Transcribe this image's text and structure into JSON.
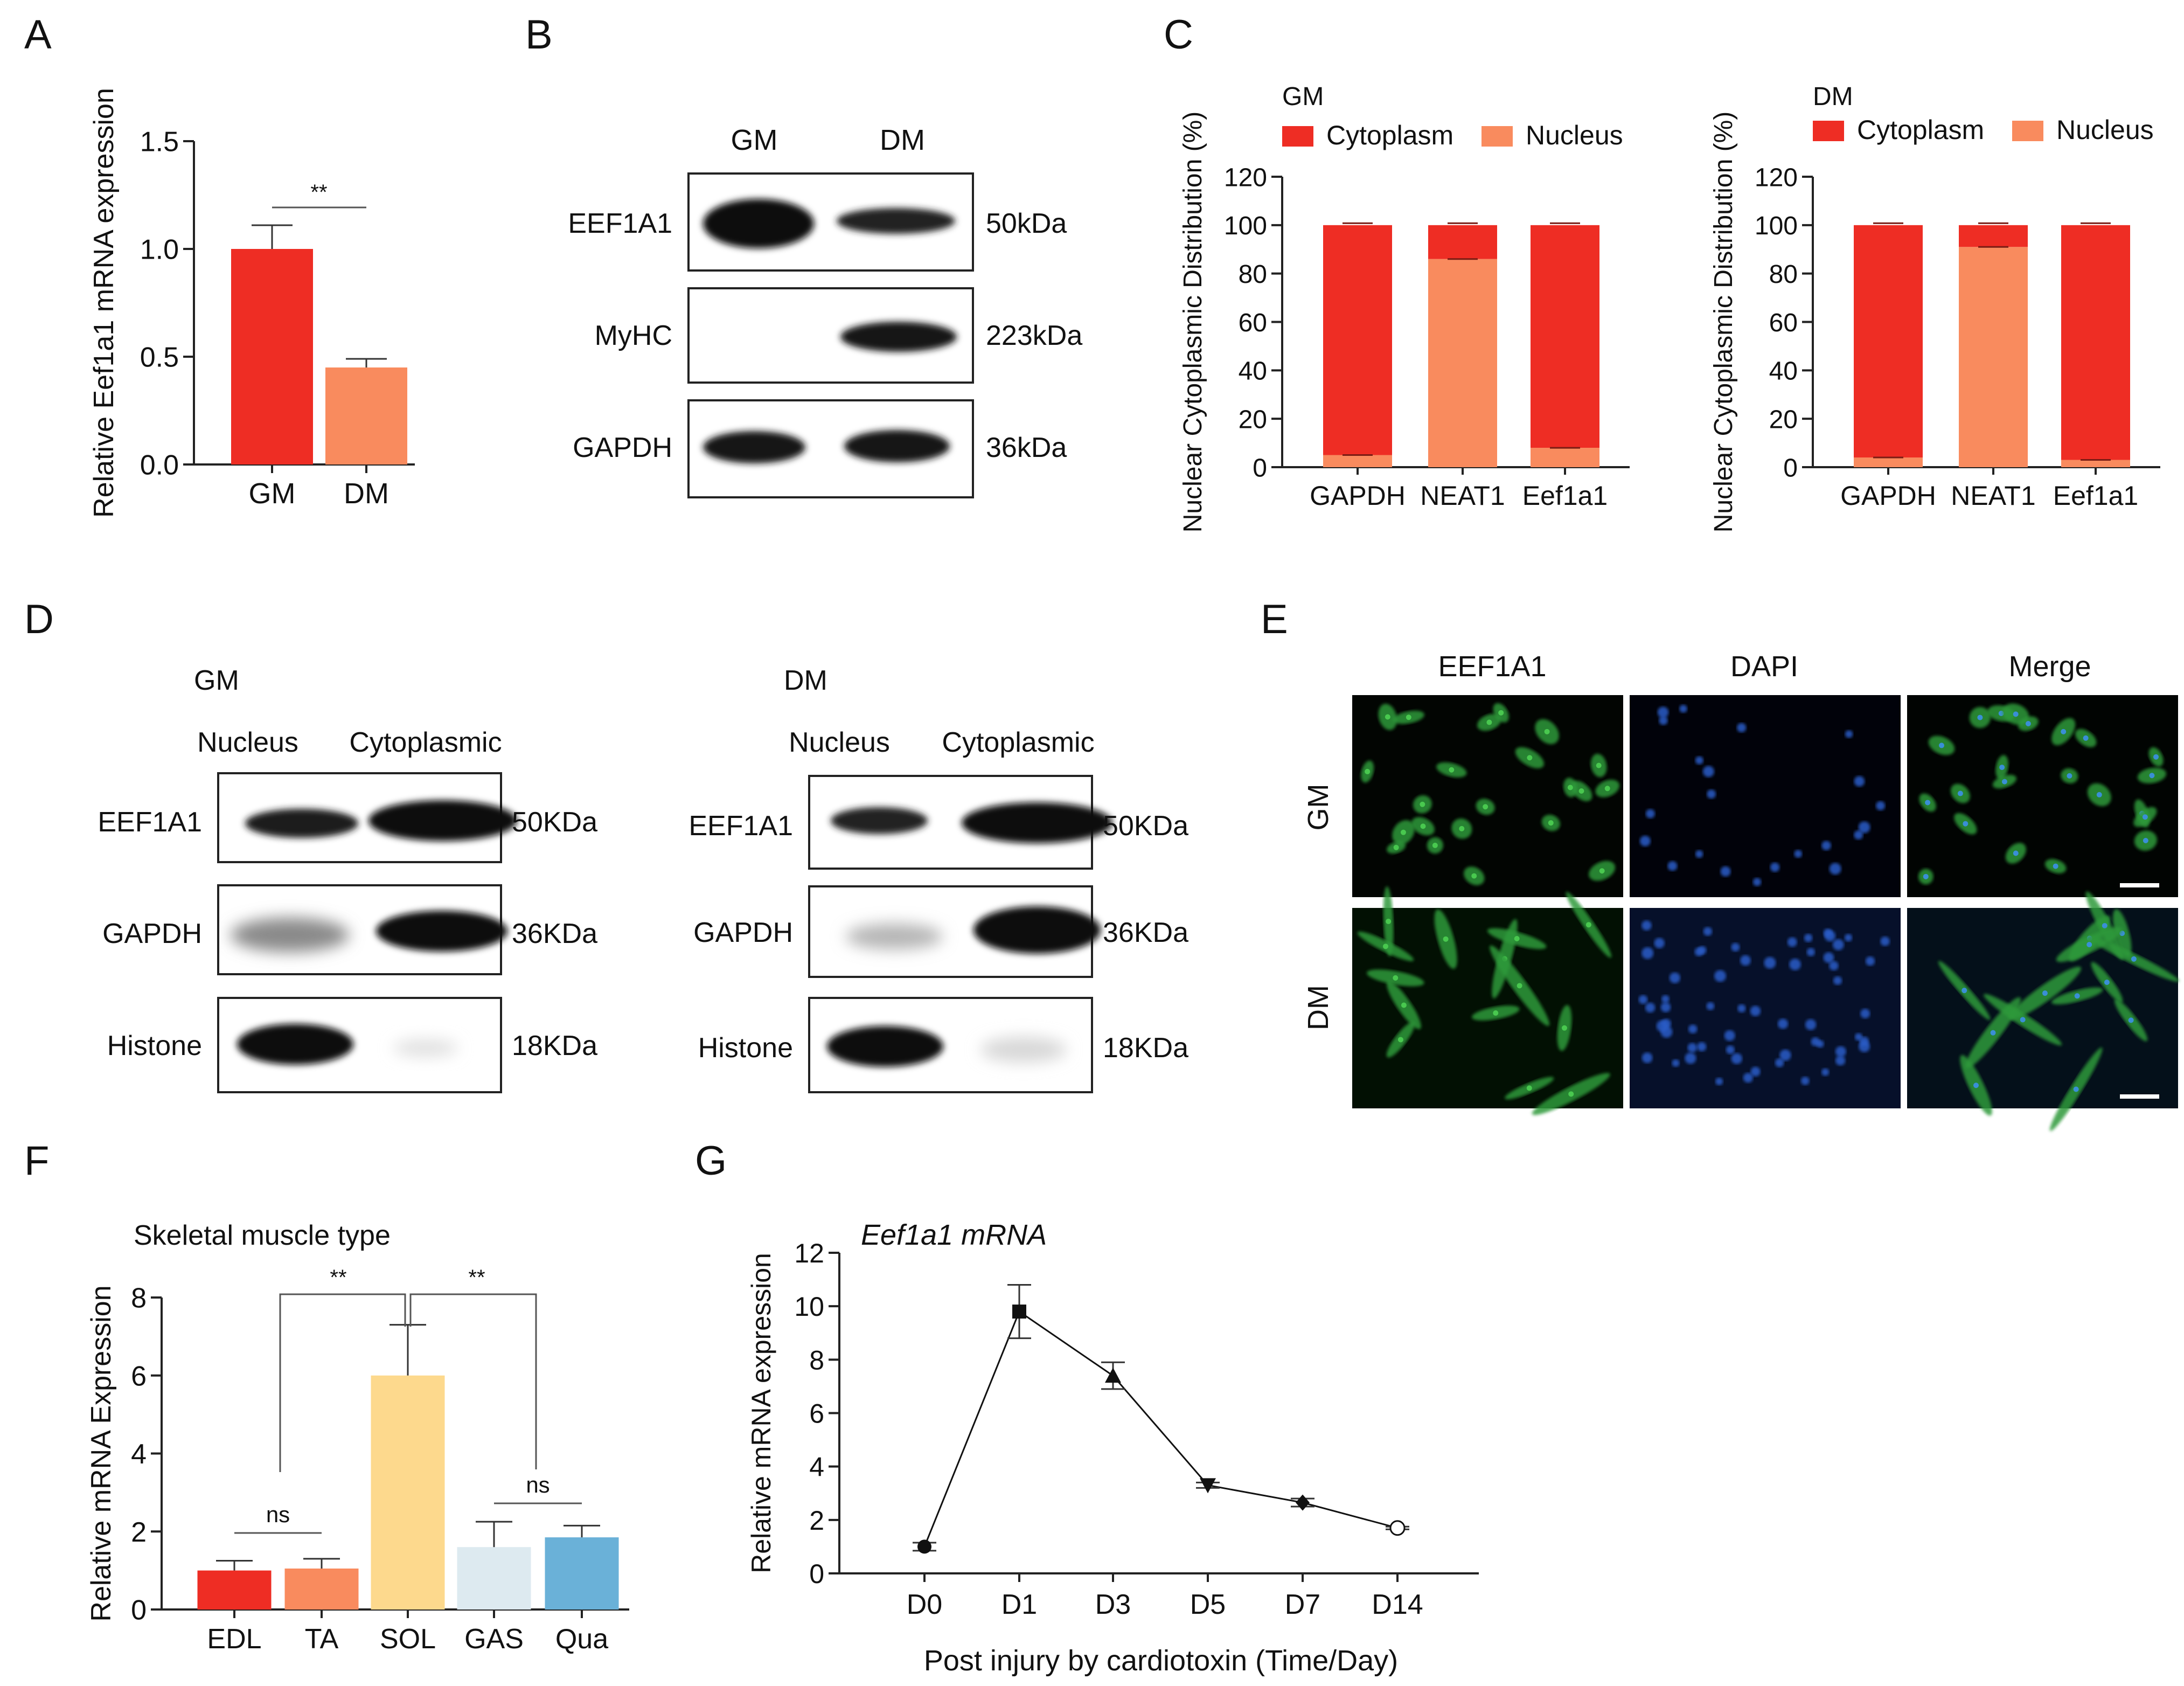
{
  "panels": {
    "A": {
      "letter": "A",
      "chart_data": {
        "type": "bar",
        "categories": [
          "GM",
          "DM"
        ],
        "values": [
          1.0,
          0.45
        ],
        "errors": [
          0.11,
          0.04
        ],
        "ylabel": "Relative Eef1a1 mRNA expression",
        "yticks": [
          "0.0",
          "0.5",
          "1.0",
          "1.5"
        ],
        "ylim": [
          0,
          1.5
        ],
        "colors": [
          "#ee2d24",
          "#f98b5e"
        ],
        "significance": [
          {
            "between": [
              "GM",
              "DM"
            ],
            "label": "**"
          }
        ]
      }
    },
    "B": {
      "letter": "B",
      "lanes": [
        "GM",
        "DM"
      ],
      "blots": [
        {
          "label": "EEF1A1",
          "size": "50kDa"
        },
        {
          "label": "MyHC",
          "size": "223kDa"
        },
        {
          "label": "GAPDH",
          "size": "36kDa"
        }
      ]
    },
    "C": {
      "letter": "C",
      "chart_data": [
        {
          "type": "bar",
          "stacked": true,
          "title": "GM",
          "categories": [
            "GAPDH",
            "NEAT1",
            "Eef1a1"
          ],
          "series": [
            {
              "name": "Nucleus",
              "color": "#f98b5e",
              "values": [
                5,
                86,
                8
              ]
            },
            {
              "name": "Cytoplasm",
              "color": "#ee2d24",
              "values": [
                95,
                14,
                92
              ]
            }
          ],
          "ylabel": "Nuclear Cytoplasmic Distribution (%)",
          "yticks": [
            "0",
            "20",
            "40",
            "60",
            "80",
            "100",
            "120"
          ],
          "ylim": [
            0,
            120
          ],
          "legend": [
            "Cytoplasm",
            "Nucleus"
          ]
        },
        {
          "type": "bar",
          "stacked": true,
          "title": "DM",
          "categories": [
            "GAPDH",
            "NEAT1",
            "Eef1a1"
          ],
          "series": [
            {
              "name": "Nucleus",
              "color": "#f98b5e",
              "values": [
                4,
                91,
                3
              ]
            },
            {
              "name": "Cytoplasm",
              "color": "#ee2d24",
              "values": [
                96,
                9,
                97
              ]
            }
          ],
          "ylabel": "Nuclear Cytoplasmic Distribution (%)",
          "yticks": [
            "0",
            "20",
            "40",
            "60",
            "80",
            "100",
            "120"
          ],
          "ylim": [
            0,
            120
          ],
          "legend": [
            "Cytoplasm",
            "Nucleus"
          ]
        }
      ]
    },
    "D": {
      "letter": "D",
      "groups": [
        {
          "title": "GM",
          "lanes": [
            "Nucleus",
            "Cytoplasmic"
          ],
          "blots": [
            {
              "label": "EEF1A1",
              "size": "50KDa"
            },
            {
              "label": "GAPDH",
              "size": "36KDa"
            },
            {
              "label": "Histone",
              "size": "18KDa"
            }
          ]
        },
        {
          "title": "DM",
          "lanes": [
            "Nucleus",
            "Cytoplasmic"
          ],
          "blots": [
            {
              "label": "EEF1A1",
              "size": "50KDa"
            },
            {
              "label": "GAPDH",
              "size": "36KDa"
            },
            {
              "label": "Histone",
              "size": "18KDa"
            }
          ]
        }
      ]
    },
    "E": {
      "letter": "E",
      "columns": [
        "EEF1A1",
        "DAPI",
        "Merge"
      ],
      "rows": [
        "GM",
        "DM"
      ]
    },
    "F": {
      "letter": "F",
      "chart_data": {
        "type": "bar",
        "title": "Skeletal muscle type",
        "categories": [
          "EDL",
          "TA",
          "SOL",
          "GAS",
          "Qua"
        ],
        "values": [
          1.0,
          1.05,
          6.0,
          1.6,
          1.85
        ],
        "errors": [
          0.25,
          0.25,
          1.3,
          0.65,
          0.3
        ],
        "colors": [
          "#ee2d24",
          "#f98b5e",
          "#fdd98d",
          "#ddeaf0",
          "#6ab1d8"
        ],
        "ylabel": "Relative mRNA Expression",
        "yticks": [
          "0",
          "2",
          "4",
          "6",
          "8"
        ],
        "ylim": [
          0,
          8
        ],
        "significance": [
          {
            "between": [
              "EDL",
              "TA"
            ],
            "label": "ns"
          },
          {
            "between": [
              "GAS",
              "Qua"
            ],
            "label": "ns"
          },
          {
            "between": [
              "EDL",
              "SOL"
            ],
            "label": "**"
          },
          {
            "between": [
              "SOL",
              "GAS"
            ],
            "label": "**"
          }
        ]
      }
    },
    "G": {
      "letter": "G",
      "chart_data": {
        "type": "line",
        "title": "Eef1a1 mRNA",
        "x": [
          "D0",
          "D1",
          "D3",
          "D5",
          "D7",
          "D14"
        ],
        "values": [
          1.0,
          9.8,
          7.4,
          3.3,
          2.65,
          1.7
        ],
        "errors": [
          0.15,
          1.0,
          0.5,
          0.1,
          0.15,
          0.05
        ],
        "markers": [
          "circle",
          "square",
          "triangle-up",
          "triangle-down",
          "diamond",
          "open-circle"
        ],
        "xlabel": "Post injury by cardiotoxin (Time/Day)",
        "ylabel": "Relative mRNA expression",
        "yticks": [
          "0",
          "2",
          "4",
          "6",
          "8",
          "10",
          "12"
        ],
        "ylim": [
          0,
          12
        ]
      }
    }
  }
}
